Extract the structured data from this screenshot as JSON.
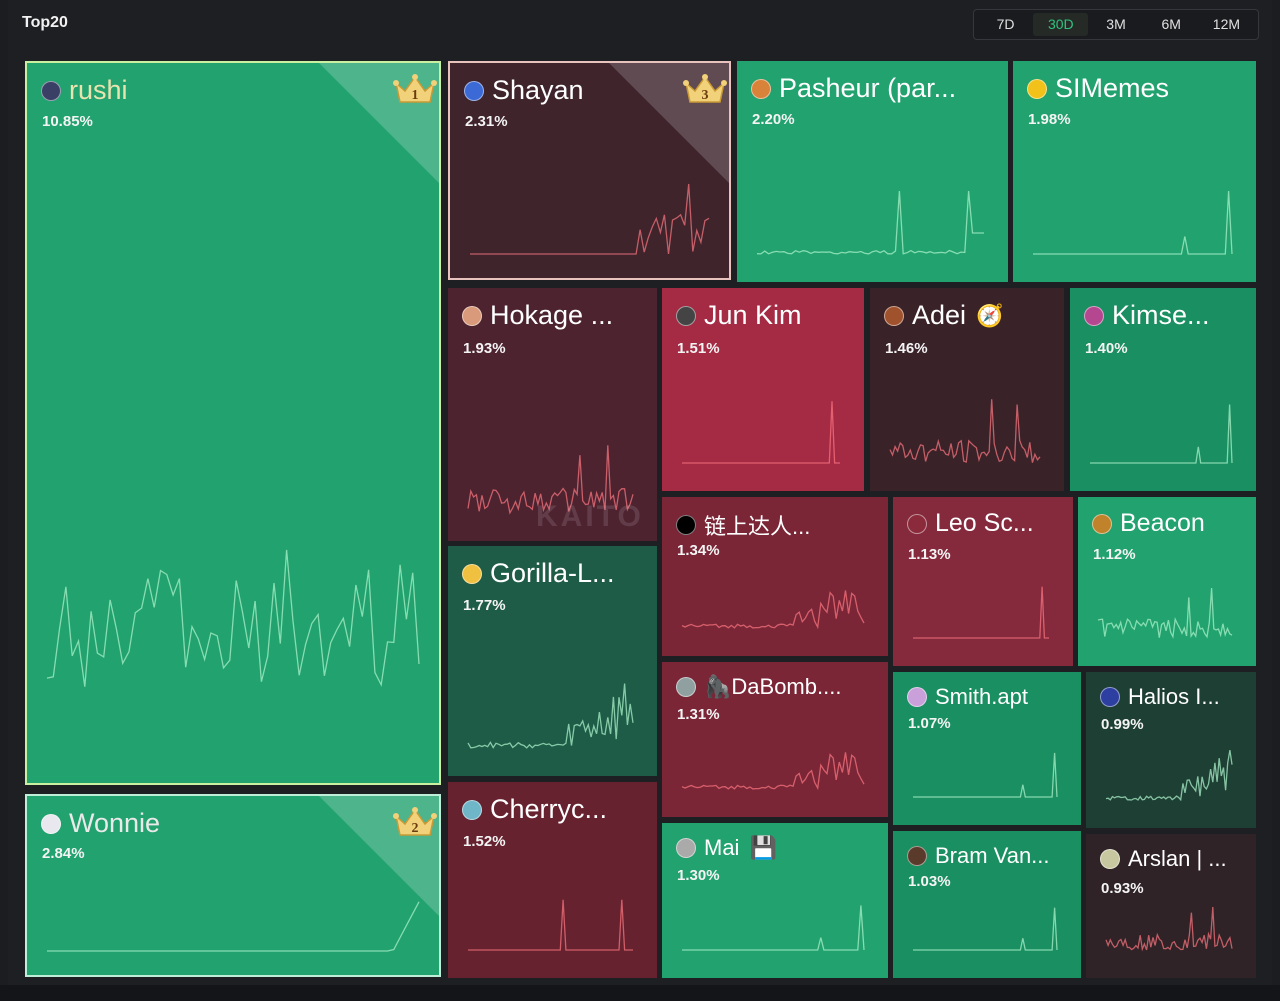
{
  "header": {
    "title": "Top20"
  },
  "time_ranges": [
    {
      "label": "7D",
      "active": false
    },
    {
      "label": "30D",
      "active": true
    },
    {
      "label": "3M",
      "active": false
    },
    {
      "label": "6M",
      "active": false
    },
    {
      "label": "12M",
      "active": false
    }
  ],
  "watermark": "KAITO",
  "colors": {
    "bright_green": "#22a26f",
    "mid_green": "#1a8f62",
    "dark_green": "#1e5c47",
    "bright_red": "#a52a44",
    "mid_red": "#7a2637",
    "dark_red": "#4d2330",
    "darkest_red": "#3a2229"
  },
  "chart_data": {
    "type": "treemap",
    "title": "Top20",
    "period": "30D",
    "items": [
      {
        "rank": 1,
        "name": "rushi",
        "share": "10.85%",
        "color": "#22a26f",
        "crown": "1"
      },
      {
        "rank": 2,
        "name": "Wonnie",
        "share": "2.84%",
        "color": "#22a26f",
        "crown": "2"
      },
      {
        "rank": 3,
        "name": "Shayan",
        "share": "2.31%",
        "color": "#3f242c",
        "crown": "3"
      },
      {
        "rank": 4,
        "name": "Pasheur (par...",
        "share": "2.20%",
        "color": "#22a26f"
      },
      {
        "rank": 5,
        "name": "SIMemes",
        "share": "1.98%",
        "color": "#22a26f"
      },
      {
        "rank": 6,
        "name": "Hokage ...",
        "share": "1.93%",
        "color": "#4d2330"
      },
      {
        "rank": 7,
        "name": "Gorilla-L...",
        "share": "1.77%",
        "color": "#1e5c47"
      },
      {
        "rank": 8,
        "name": "Cherryc...",
        "share": "1.52%",
        "color": "#66222f"
      },
      {
        "rank": 9,
        "name": "Jun Kim",
        "share": "1.51%",
        "color": "#a52a44"
      },
      {
        "rank": 10,
        "name": "Adei",
        "share": "1.46%",
        "color": "#3a2229",
        "badge": "🧭"
      },
      {
        "rank": 11,
        "name": "Kimse...",
        "share": "1.40%",
        "color": "#1a8f62"
      },
      {
        "rank": 12,
        "name": "链上达人...",
        "share": "1.34%",
        "color": "#7a2637"
      },
      {
        "rank": 13,
        "name": "🦍DaBomb....",
        "share": "1.31%",
        "color": "#7a2637"
      },
      {
        "rank": 14,
        "name": "Mai",
        "share": "1.30%",
        "color": "#22a26f",
        "badge": "💾"
      },
      {
        "rank": 15,
        "name": "Leo Sc...",
        "share": "1.13%",
        "color": "#85293d"
      },
      {
        "rank": 16,
        "name": "Beacon",
        "share": "1.12%",
        "color": "#22a26f"
      },
      {
        "rank": 17,
        "name": "Smith.apt",
        "share": "1.07%",
        "color": "#1a8f62"
      },
      {
        "rank": 18,
        "name": "Bram Van...",
        "share": "1.03%",
        "color": "#1a8f62"
      },
      {
        "rank": 19,
        "name": "Halios I...",
        "share": "0.99%",
        "color": "#1e3f34"
      },
      {
        "rank": 20,
        "name": "Arslan | ...",
        "share": "0.93%",
        "color": "#2f2327"
      }
    ]
  }
}
